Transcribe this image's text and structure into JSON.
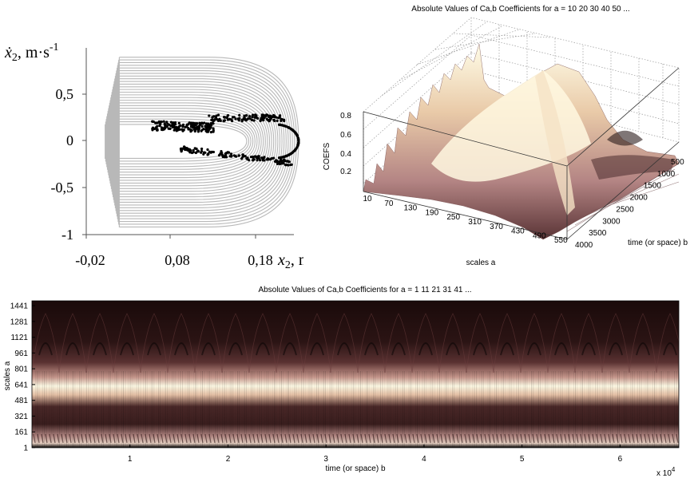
{
  "chart_data": [
    {
      "type": "scatter",
      "x_ticks": [
        "-0,02",
        "0,08",
        "0,18"
      ],
      "y_ticks": [
        "0,5",
        "0",
        "-0,5",
        "-1"
      ],
      "xlabel": "x",
      "xlabel_sub": "2",
      "xlabel_unit": ", m",
      "ylabel": "ẋ",
      "ylabel_sub": "2",
      "ylabel_unit": ", m·s",
      "ylabel_exp": "-1",
      "xlim": [
        -0.02,
        0.2
      ],
      "ylim": [
        -1,
        1
      ],
      "series_colors": [
        "#b8b8b8",
        "#000000"
      ]
    },
    {
      "type": "surface",
      "title": "Absolute Values of Ca,b Coefficients for a =  10 20 30 40 50 ...",
      "z_label": "COEFS",
      "z_ticks": [
        "0.8",
        "0.6",
        "0.4",
        "0.2"
      ],
      "x_label": "scales a",
      "x_ticks": [
        "10",
        "70",
        "130",
        "190",
        "250",
        "310",
        "370",
        "430",
        "490",
        "550"
      ],
      "y_label": "time (or space) b",
      "y_ticks": [
        "500",
        "1000",
        "1500",
        "2000",
        "2500",
        "3000",
        "3500",
        "4000"
      ],
      "zlim": [
        0,
        0.9
      ]
    },
    {
      "type": "heatmap",
      "title": "Absolute Values of Ca,b Coefficients for a =  1 11 21 31 41 ...",
      "ylabel": "scales a",
      "y_ticks": [
        "1441",
        "1281",
        "1121",
        "961",
        "801",
        "641",
        "481",
        "321",
        "161",
        "1"
      ],
      "xlabel": "time (or space) b",
      "x_ticks": [
        "1",
        "2",
        "3",
        "4",
        "5",
        "6"
      ],
      "x_multiplier": "x 10",
      "x_multiplier_exp": "4",
      "xlim": [
        0,
        66000
      ],
      "colormap": [
        "#000000",
        "#5a2e2e",
        "#a8787a",
        "#e8c8b0",
        "#fffef0"
      ]
    }
  ]
}
